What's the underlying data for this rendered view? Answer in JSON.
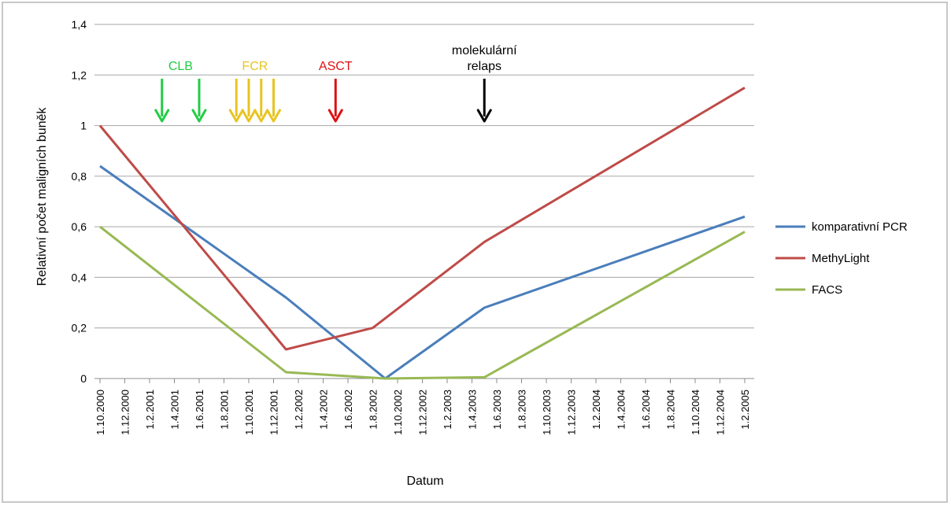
{
  "chart_data": {
    "type": "line",
    "title": "",
    "xlabel": "Datum",
    "ylabel": "Relativní počet maligních buněk",
    "ylim": [
      0,
      1.4
    ],
    "yticks": [
      "0",
      "0,2",
      "0,4",
      "0,6",
      "0,8",
      "1",
      "1,2",
      "1,4"
    ],
    "grid": "horizontal",
    "legend_position": "right",
    "categories": [
      "1.10.2000",
      "1.12.2000",
      "1.2.2001",
      "1.4.2001",
      "1.6.2001",
      "1.8.2001",
      "1.10.2001",
      "1.12.2001",
      "1.2.2002",
      "1.4.2002",
      "1.6.2002",
      "1.8.2002",
      "1.10.2002",
      "1.12.2002",
      "1.2.2003",
      "1.4.2003",
      "1.6.2003",
      "1.8.2003",
      "1.10.2003",
      "1.12.2003",
      "1.2.2004",
      "1.4.2004",
      "1.6.2004",
      "1.8.2004",
      "1.10.2004",
      "1.12.2004",
      "1.2.2005"
    ],
    "series": [
      {
        "name": "komparativní PCR",
        "color": "#4a7ebb",
        "points": [
          [
            "1.10.2000",
            0.84
          ],
          [
            "1.1.2002",
            0.32
          ],
          [
            "1.9.2002",
            0.0
          ],
          [
            "1.5.2003",
            0.28
          ],
          [
            "1.2.2005",
            0.64
          ]
        ]
      },
      {
        "name": "MethyLight",
        "color": "#be4b48",
        "points": [
          [
            "1.10.2000",
            1.0
          ],
          [
            "1.1.2002",
            0.115
          ],
          [
            "1.8.2002",
            0.2
          ],
          [
            "1.5.2003",
            0.54
          ],
          [
            "1.2.2005",
            1.15
          ]
        ]
      },
      {
        "name": "FACS",
        "color": "#98b954",
        "points": [
          [
            "1.10.2000",
            0.6
          ],
          [
            "1.1.2002",
            0.025
          ],
          [
            "1.9.2002",
            0.0
          ],
          [
            "1.5.2003",
            0.005
          ],
          [
            "1.2.2005",
            0.58
          ]
        ]
      }
    ],
    "annotations": [
      {
        "label": "CLB",
        "color": "#22cc44",
        "arrows": [
          "1.3.2001",
          "1.6.2001"
        ]
      },
      {
        "label": "FCR",
        "color": "#e8c422",
        "arrows": [
          "1.9.2001",
          "1.10.2001",
          "1.11.2001",
          "1.12.2001"
        ]
      },
      {
        "label": "ASCT",
        "color": "#dd1111",
        "arrows": [
          "1.5.2002"
        ]
      },
      {
        "label": "molekulární\nrelaps",
        "color": "#000000",
        "arrows": [
          "1.5.2003"
        ]
      }
    ]
  }
}
